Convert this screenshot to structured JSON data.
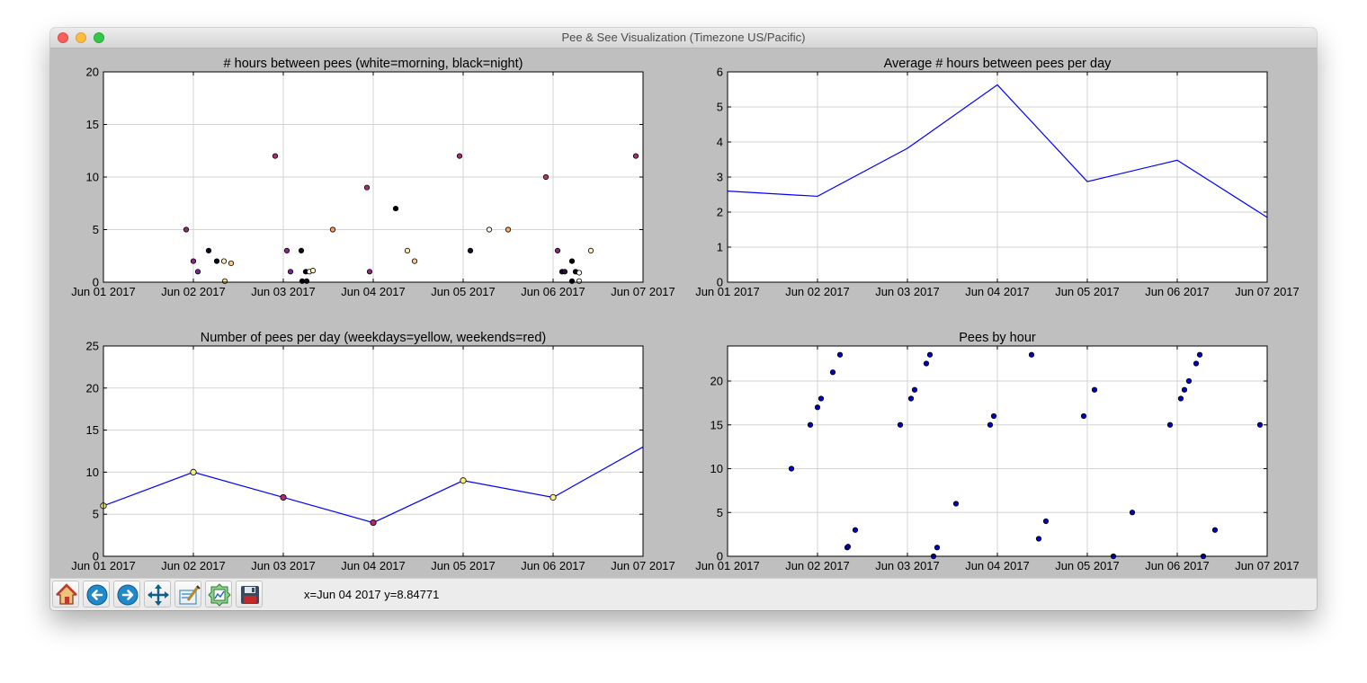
{
  "window": {
    "title": "Pee & See Visualization (Timezone US/Pacific)"
  },
  "toolbar": {
    "buttons": [
      {
        "name": "home",
        "icon": "home-icon"
      },
      {
        "name": "back",
        "icon": "back-arrow-icon"
      },
      {
        "name": "forward",
        "icon": "forward-arrow-icon"
      },
      {
        "name": "pan",
        "icon": "pan-arrows-icon"
      },
      {
        "name": "zoom",
        "icon": "zoom-rect-icon"
      },
      {
        "name": "subplots",
        "icon": "configure-subplots-icon"
      },
      {
        "name": "save",
        "icon": "floppy-disk-icon"
      }
    ],
    "status": "x=Jun 04 2017 y=8.84771"
  },
  "colors": {
    "line": "#0000ff",
    "grid": "#d3d3d3",
    "scatter": "#0000cc",
    "figure_bg": "#bfbfbf"
  },
  "chart_data": [
    {
      "type": "scatter",
      "title": "# hours between pees (white=morning, black=night)",
      "xlabel": "",
      "ylabel": "",
      "x_ticks": [
        "Jun 01 2017",
        "Jun 02 2017",
        "Jun 03 2017",
        "Jun 04 2017",
        "Jun 05 2017",
        "Jun 06 2017",
        "Jun 07 2017"
      ],
      "xlim": [
        0,
        6
      ],
      "ylim": [
        0,
        20
      ],
      "y_ticks": [
        0,
        5,
        10,
        15,
        20
      ],
      "grid": true,
      "color_encoding": "hour of day (white=morning, black=night)",
      "points": [
        {
          "x": 0.92,
          "y": 5,
          "color": "#9a2a77"
        },
        {
          "x": 1.0,
          "y": 2,
          "color": "#8e2682"
        },
        {
          "x": 1.05,
          "y": 1,
          "color": "#7d2296"
        },
        {
          "x": 1.17,
          "y": 3,
          "color": "#0d0a1c"
        },
        {
          "x": 1.26,
          "y": 2,
          "color": "#07051a"
        },
        {
          "x": 1.34,
          "y": 2,
          "color": "#fde9b0"
        },
        {
          "x": 1.35,
          "y": 0.1,
          "color": "#fdd890"
        },
        {
          "x": 1.42,
          "y": 1.8,
          "color": "#fec685"
        },
        {
          "x": 1.91,
          "y": 12,
          "color": "#a8306f"
        },
        {
          "x": 2.04,
          "y": 3,
          "color": "#8a2585"
        },
        {
          "x": 2.08,
          "y": 1,
          "color": "#7c2394"
        },
        {
          "x": 2.2,
          "y": 3,
          "color": "#12091f"
        },
        {
          "x": 2.21,
          "y": 0.1,
          "color": "#000000"
        },
        {
          "x": 2.26,
          "y": 0.1,
          "color": "#120a22"
        },
        {
          "x": 2.25,
          "y": 1,
          "color": "#050318"
        },
        {
          "x": 2.29,
          "y": 1,
          "color": "#fff8d8"
        },
        {
          "x": 2.33,
          "y": 1.1,
          "color": "#fef0c4"
        },
        {
          "x": 2.55,
          "y": 5,
          "color": "#fb9a63"
        },
        {
          "x": 2.93,
          "y": 9,
          "color": "#a32f72"
        },
        {
          "x": 2.96,
          "y": 1,
          "color": "#8c2783"
        },
        {
          "x": 3.25,
          "y": 7,
          "color": "#000000"
        },
        {
          "x": 3.38,
          "y": 3,
          "color": "#fcebb4"
        },
        {
          "x": 3.46,
          "y": 2,
          "color": "#fec98a"
        },
        {
          "x": 3.96,
          "y": 12,
          "color": "#a2306f"
        },
        {
          "x": 4.08,
          "y": 3,
          "color": "#1c0d2a"
        },
        {
          "x": 4.29,
          "y": 5,
          "color": "#fff5d4"
        },
        {
          "x": 4.5,
          "y": 5,
          "color": "#fbac6b"
        },
        {
          "x": 4.92,
          "y": 10,
          "color": "#b3366b"
        },
        {
          "x": 5.05,
          "y": 3,
          "color": "#8a2487"
        },
        {
          "x": 5.1,
          "y": 1,
          "color": "#170b26"
        },
        {
          "x": 5.13,
          "y": 1,
          "color": "#2a1040"
        },
        {
          "x": 5.21,
          "y": 2,
          "color": "#000000"
        },
        {
          "x": 5.21,
          "y": 0.1,
          "color": "#060418"
        },
        {
          "x": 5.25,
          "y": 1,
          "color": "#0b0720"
        },
        {
          "x": 5.29,
          "y": 0.1,
          "color": "#fffbe6"
        },
        {
          "x": 5.29,
          "y": 0.9,
          "color": "#fff8de"
        },
        {
          "x": 5.42,
          "y": 3,
          "color": "#fcefbc"
        },
        {
          "x": 5.92,
          "y": 12,
          "color": "#a0306f"
        }
      ]
    },
    {
      "type": "line",
      "title": "Average # hours between pees per day",
      "xlabel": "",
      "ylabel": "",
      "x_ticks": [
        "Jun 01 2017",
        "Jun 02 2017",
        "Jun 03 2017",
        "Jun 04 2017",
        "Jun 05 2017",
        "Jun 06 2017",
        "Jun 07 2017"
      ],
      "xlim": [
        0,
        6
      ],
      "ylim": [
        0,
        6
      ],
      "y_ticks": [
        0,
        1,
        2,
        3,
        4,
        5,
        6
      ],
      "grid": true,
      "x": [
        0,
        1,
        2,
        3,
        4,
        5,
        6
      ],
      "y": [
        2.6,
        2.45,
        3.82,
        5.63,
        2.87,
        3.48,
        1.85
      ]
    },
    {
      "type": "line",
      "title": "Number of pees per day (weekdays=yellow, weekends=red)",
      "xlabel": "",
      "ylabel": "",
      "x_ticks": [
        "Jun 01 2017",
        "Jun 02 2017",
        "Jun 03 2017",
        "Jun 04 2017",
        "Jun 05 2017",
        "Jun 06 2017",
        "Jun 07 2017"
      ],
      "xlim": [
        0,
        6
      ],
      "ylim": [
        0,
        25
      ],
      "y_ticks": [
        0,
        5,
        10,
        15,
        20,
        25
      ],
      "grid": true,
      "x": [
        0,
        1,
        2,
        3,
        4,
        5,
        6
      ],
      "y": [
        6,
        10,
        7,
        4,
        9,
        7,
        13
      ],
      "marker_colors": [
        "#f5f07a",
        "#f5f07a",
        "#b8246e",
        "#b8246e",
        "#f5f07a",
        "#f5f07a",
        null
      ]
    },
    {
      "type": "scatter",
      "title": "Pees by hour",
      "xlabel": "",
      "ylabel": "",
      "x_ticks": [
        "Jun 01 2017",
        "Jun 02 2017",
        "Jun 03 2017",
        "Jun 04 2017",
        "Jun 05 2017",
        "Jun 06 2017",
        "Jun 07 2017"
      ],
      "xlim": [
        0,
        6
      ],
      "ylim": [
        0,
        24
      ],
      "y_ticks": [
        0,
        5,
        10,
        15,
        20
      ],
      "grid": true,
      "points": [
        {
          "x": 0.71,
          "y": 10
        },
        {
          "x": 0.92,
          "y": 15
        },
        {
          "x": 1.0,
          "y": 17
        },
        {
          "x": 1.04,
          "y": 18
        },
        {
          "x": 1.17,
          "y": 21
        },
        {
          "x": 1.25,
          "y": 23
        },
        {
          "x": 1.33,
          "y": 1
        },
        {
          "x": 1.34,
          "y": 1.1
        },
        {
          "x": 1.42,
          "y": 3
        },
        {
          "x": 1.92,
          "y": 15
        },
        {
          "x": 2.04,
          "y": 18
        },
        {
          "x": 2.08,
          "y": 19
        },
        {
          "x": 2.21,
          "y": 22
        },
        {
          "x": 2.25,
          "y": 23
        },
        {
          "x": 2.29,
          "y": 0
        },
        {
          "x": 2.33,
          "y": 1
        },
        {
          "x": 2.54,
          "y": 6
        },
        {
          "x": 2.92,
          "y": 15
        },
        {
          "x": 2.96,
          "y": 16
        },
        {
          "x": 3.38,
          "y": 23
        },
        {
          "x": 3.46,
          "y": 2
        },
        {
          "x": 3.54,
          "y": 4
        },
        {
          "x": 3.96,
          "y": 16
        },
        {
          "x": 4.08,
          "y": 19
        },
        {
          "x": 4.29,
          "y": 0
        },
        {
          "x": 4.5,
          "y": 5
        },
        {
          "x": 4.92,
          "y": 15
        },
        {
          "x": 5.04,
          "y": 18
        },
        {
          "x": 5.08,
          "y": 19
        },
        {
          "x": 5.13,
          "y": 20
        },
        {
          "x": 5.21,
          "y": 22
        },
        {
          "x": 5.25,
          "y": 23
        },
        {
          "x": 5.29,
          "y": 0
        },
        {
          "x": 5.42,
          "y": 3
        },
        {
          "x": 5.92,
          "y": 15
        }
      ]
    }
  ]
}
